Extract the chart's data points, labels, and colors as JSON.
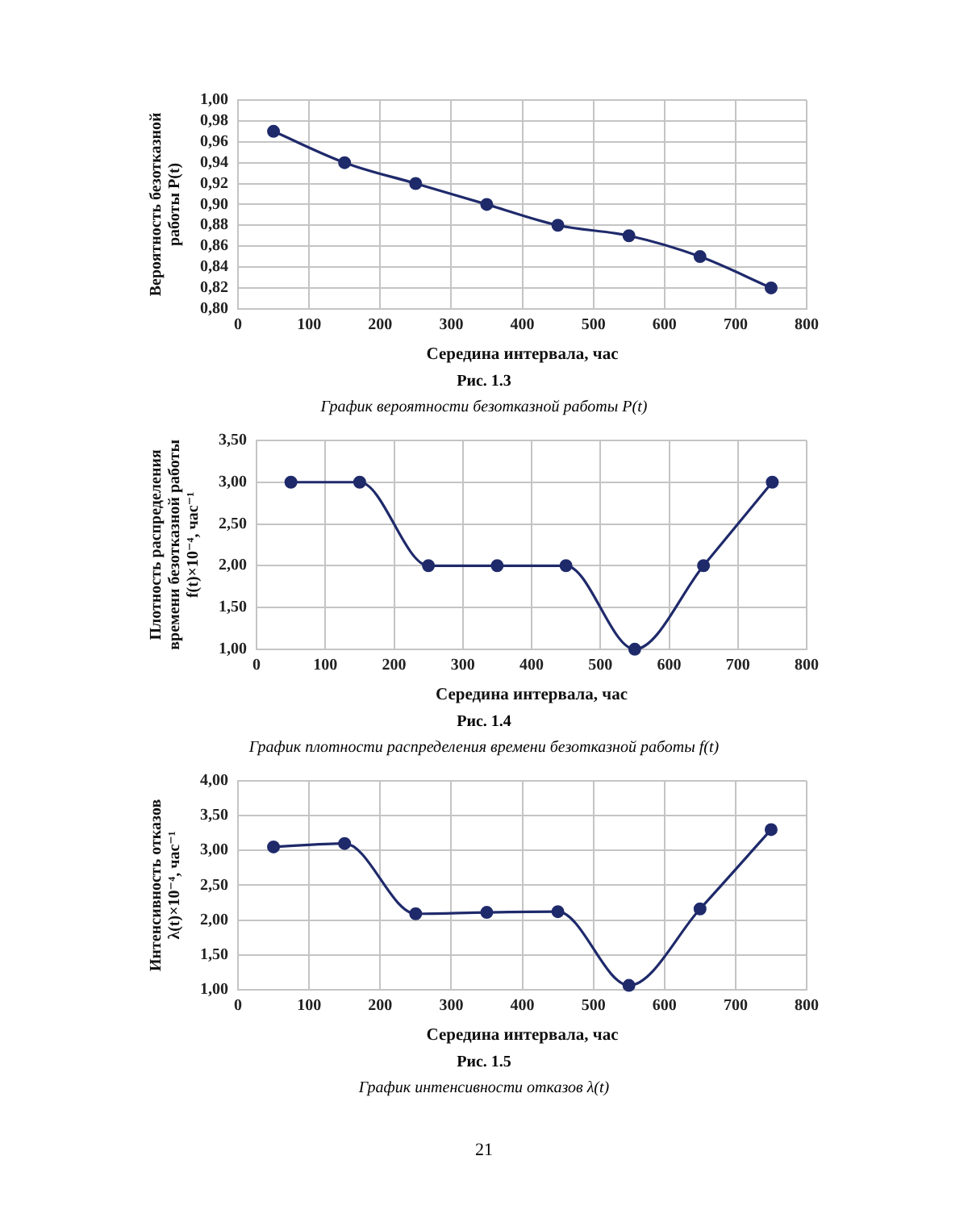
{
  "chart_data": [
    {
      "type": "line",
      "title": "Рис. 1.3",
      "subtitle": "График вероятности безотказной работы P(t)",
      "xlabel": "Середина интервала, час",
      "ylabel": "Вероятность безотказной работы P(t)",
      "x": [
        50,
        150,
        250,
        350,
        450,
        550,
        650,
        750
      ],
      "values": [
        0.97,
        0.94,
        0.92,
        0.9,
        0.88,
        0.87,
        0.85,
        0.82
      ],
      "color": "#1f2a6b",
      "xlim": [
        0,
        800
      ],
      "xticks": [
        0,
        100,
        200,
        300,
        400,
        500,
        600,
        700,
        800
      ],
      "ylim": [
        0.8,
        1.0
      ],
      "yticks": [
        {
          "value": 0.8,
          "label": "0,80"
        },
        {
          "value": 0.82,
          "label": "0,82"
        },
        {
          "value": 0.84,
          "label": "0,84"
        },
        {
          "value": 0.86,
          "label": "0,86"
        },
        {
          "value": 0.88,
          "label": "0,88"
        },
        {
          "value": 0.9,
          "label": "0,90"
        },
        {
          "value": 0.92,
          "label": "0,92"
        },
        {
          "value": 0.94,
          "label": "0,94"
        },
        {
          "value": 0.96,
          "label": "0,96"
        },
        {
          "value": 0.98,
          "label": "0,98"
        },
        {
          "value": 1.0,
          "label": "1,00"
        }
      ],
      "grid": true,
      "marker": "circle",
      "line_style": "solid"
    },
    {
      "type": "line",
      "title": "Рис. 1.4",
      "subtitle": "График плотности распределения времени безотказной работы f(t)",
      "xlabel": "Середина интервала, час",
      "ylabel": "Плотность распределения времени безотказной работы f(t)×10⁻⁴, час⁻¹",
      "x": [
        50,
        150,
        250,
        350,
        450,
        550,
        650,
        750
      ],
      "values": [
        3.0,
        3.0,
        2.0,
        2.0,
        2.0,
        1.0,
        2.0,
        3.0
      ],
      "color": "#1f2a6b",
      "xlim": [
        0,
        800
      ],
      "xticks": [
        0,
        100,
        200,
        300,
        400,
        500,
        600,
        700,
        800
      ],
      "ylim": [
        1.0,
        3.5
      ],
      "yticks": [
        {
          "value": 1.0,
          "label": "1,00"
        },
        {
          "value": 1.5,
          "label": "1,50"
        },
        {
          "value": 2.0,
          "label": "2,00"
        },
        {
          "value": 2.5,
          "label": "2,50"
        },
        {
          "value": 3.0,
          "label": "3,00"
        },
        {
          "value": 3.5,
          "label": "3,50"
        }
      ],
      "grid": true,
      "marker": "circle",
      "line_style": "solid"
    },
    {
      "type": "line",
      "title": "Рис. 1.5",
      "subtitle": "График интенсивности отказов λ(t)",
      "xlabel": "Середина интервала, час",
      "ylabel": "Интенсивность отказов λ(t)×10⁻⁴, час⁻¹",
      "x": [
        50,
        150,
        250,
        350,
        450,
        550,
        650,
        750
      ],
      "values": [
        3.05,
        3.1,
        2.09,
        2.11,
        2.12,
        1.06,
        2.16,
        3.3
      ],
      "color": "#1f2a6b",
      "xlim": [
        0,
        800
      ],
      "xticks": [
        0,
        100,
        200,
        300,
        400,
        500,
        600,
        700,
        800
      ],
      "ylim": [
        1.0,
        4.0
      ],
      "yticks": [
        {
          "value": 1.0,
          "label": "1,00"
        },
        {
          "value": 1.5,
          "label": "1,50"
        },
        {
          "value": 2.0,
          "label": "2,00"
        },
        {
          "value": 2.5,
          "label": "2,50"
        },
        {
          "value": 3.0,
          "label": "3,00"
        },
        {
          "value": 3.5,
          "label": "3,50"
        },
        {
          "value": 4.0,
          "label": "4,00"
        }
      ],
      "grid": true,
      "marker": "circle",
      "line_style": "solid",
      "annotations": [
        "21"
      ]
    }
  ]
}
